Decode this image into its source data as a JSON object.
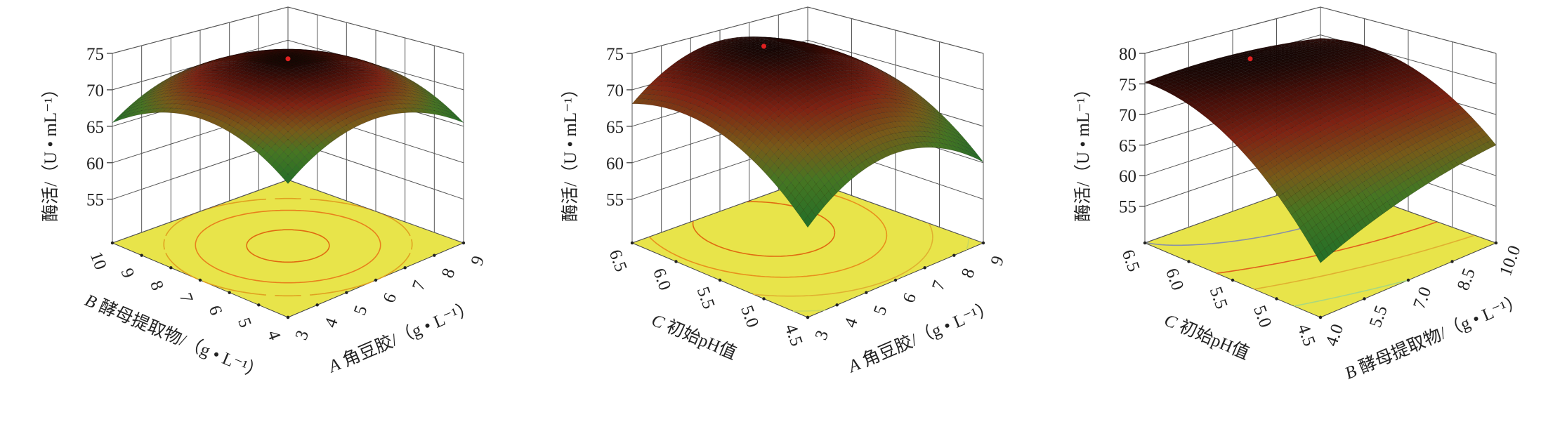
{
  "chart_data": [
    {
      "type": "surface3d",
      "zlabel": "酶活/（U • mL⁻¹）",
      "zlim": [
        49,
        75
      ],
      "zticks": [
        55,
        60,
        65,
        70,
        75
      ],
      "x_axis": {
        "var": "A",
        "name": " 角豆胶/（g • L⁻¹）",
        "range": [
          3,
          9
        ],
        "ticks": [
          "3",
          "4",
          "5",
          "6",
          "7",
          "8",
          "9"
        ],
        "tick_values": [
          3,
          4,
          5,
          6,
          7,
          8,
          9
        ]
      },
      "y_axis": {
        "var": "B",
        "name": " 酵母提取物/（g • L⁻¹）",
        "range": [
          4,
          10
        ],
        "ticks": [
          "4",
          "5",
          "6",
          "7",
          "8",
          "9",
          "10"
        ],
        "tick_values": [
          4,
          5,
          6,
          7,
          8,
          9,
          10
        ]
      },
      "model": {
        "x0": 6,
        "y0": 7,
        "zmax": 74.5,
        "kx": 0.5,
        "ky": 0.5,
        "kxy": 0
      },
      "contours": [
        {
          "level": 70,
          "color": "#e0a020"
        },
        {
          "level": 72,
          "color": "#e8801c"
        },
        {
          "level": 74,
          "color": "#e06a10"
        }
      ],
      "floor_color": "#e8e44a",
      "point_color": "#e02020"
    },
    {
      "type": "surface3d",
      "zlabel": "酶活/（U • mL⁻¹）",
      "zlim": [
        49,
        75
      ],
      "zticks": [
        55,
        60,
        65,
        70,
        75
      ],
      "x_axis": {
        "var": "A",
        "name": " 角豆胶/（g • L⁻¹）",
        "range": [
          3,
          9
        ],
        "ticks": [
          "3",
          "4",
          "5",
          "6",
          "7",
          "8",
          "9"
        ],
        "tick_values": [
          3,
          4,
          5,
          6,
          7,
          8,
          9
        ]
      },
      "y_axis": {
        "var": "C",
        "name": " 初始pH值",
        "range": [
          4.5,
          6.5
        ],
        "ticks": [
          "4.5",
          "5.0",
          "5.5",
          "6.0",
          "6.5"
        ],
        "tick_values": [
          4.5,
          5.0,
          5.5,
          6.0,
          6.5
        ]
      },
      "model": {
        "x0": 6,
        "y0": 6.0,
        "zmax": 74.5,
        "kx": 0.6,
        "ky": 4,
        "kxy": 0
      },
      "contours": [
        {
          "level": 62,
          "color": "#c8d860"
        },
        {
          "level": 66,
          "color": "#e0b030"
        },
        {
          "level": 70,
          "color": "#e8901c"
        },
        {
          "level": 73,
          "color": "#e06a10"
        }
      ],
      "floor_color": "#e8e44a",
      "point_color": "#e02020"
    },
    {
      "type": "surface3d",
      "zlabel": "酶活/（U • mL⁻¹）",
      "zlim": [
        49,
        80
      ],
      "zticks": [
        55,
        60,
        65,
        70,
        75,
        80
      ],
      "x_axis": {
        "var": "B",
        "name": " 酵母提取物/（g • L⁻¹）",
        "range": [
          4,
          10
        ],
        "ticks": [
          "4.0",
          "5.5",
          "7.0",
          "8.5",
          "10.0"
        ],
        "tick_values": [
          4.0,
          5.5,
          7.0,
          8.5,
          10.0
        ]
      },
      "y_axis": {
        "var": "C",
        "name": " 初始pH值",
        "range": [
          4.5,
          6.5
        ],
        "ticks": [
          "4.5",
          "5.0",
          "5.5",
          "6.0",
          "6.5"
        ],
        "tick_values": [
          4.5,
          5.0,
          5.5,
          6.0,
          6.5
        ]
      },
      "model": {
        "x0": 7,
        "y0": 6.3,
        "zmax": 76,
        "kx": 0.11,
        "ky": 4.32,
        "kxy": -0.74
      },
      "contours": [
        {
          "level": 62,
          "color": "#a8d880"
        },
        {
          "level": 68,
          "color": "#e0b030"
        },
        {
          "level": 72,
          "color": "#e0601c"
        },
        {
          "level": 75.3,
          "color": "#8890a8"
        }
      ],
      "floor_color": "#e8e44a",
      "point_color": "#e02020"
    }
  ]
}
